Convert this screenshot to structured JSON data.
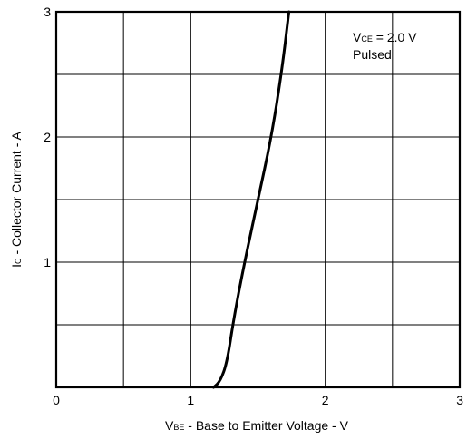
{
  "chart_data": {
    "type": "line",
    "title": "",
    "xlabel": {
      "main": "V",
      "subscript": "BE",
      "rest": " - Base to Emitter Voltage - V"
    },
    "ylabel": {
      "main": "I",
      "subscript": "C",
      "rest": " - Collector Current - A"
    },
    "xlim": [
      0,
      3
    ],
    "ylim": [
      0,
      3
    ],
    "x_ticks": [
      "0",
      "1",
      "2",
      "3"
    ],
    "y_ticks": [
      "0",
      "1",
      "2",
      "3"
    ],
    "x_tick_values": [
      0,
      1,
      2,
      3
    ],
    "y_tick_values": [
      0,
      1,
      2,
      3
    ],
    "x_grid": [
      0.5,
      1,
      1.5,
      2,
      2.5
    ],
    "y_grid": [
      0.5,
      1,
      1.5,
      2,
      2.5
    ],
    "grid": true,
    "annotation": {
      "line1_main": "V",
      "line1_sub": "CE",
      "line1_rest": " = 2.0 V",
      "line2": "Pulsed",
      "placement": "top-right"
    },
    "series": [
      {
        "x": [
          1.17,
          1.22,
          1.27,
          1.32,
          1.4,
          1.5,
          1.6,
          1.68,
          1.73
        ],
        "y": [
          0.0,
          0.05,
          0.2,
          0.55,
          1.0,
          1.5,
          2.0,
          2.55,
          3.0
        ],
        "color": "#000000"
      }
    ]
  }
}
